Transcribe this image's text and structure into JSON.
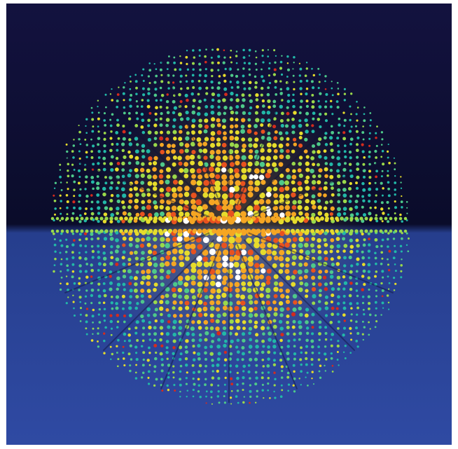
{
  "image": {
    "subject": "dot-sphere",
    "background": {
      "top": "#13123f",
      "horizon": "#0a0c2a",
      "lower": "#263e8d",
      "bottom": "#2f4aa3"
    },
    "palette": [
      "#22b8a8",
      "#4ec98a",
      "#9ad94b",
      "#e6dc2c",
      "#f5a623",
      "#e8521f",
      "#d42b1e",
      "#ffffff"
    ]
  }
}
